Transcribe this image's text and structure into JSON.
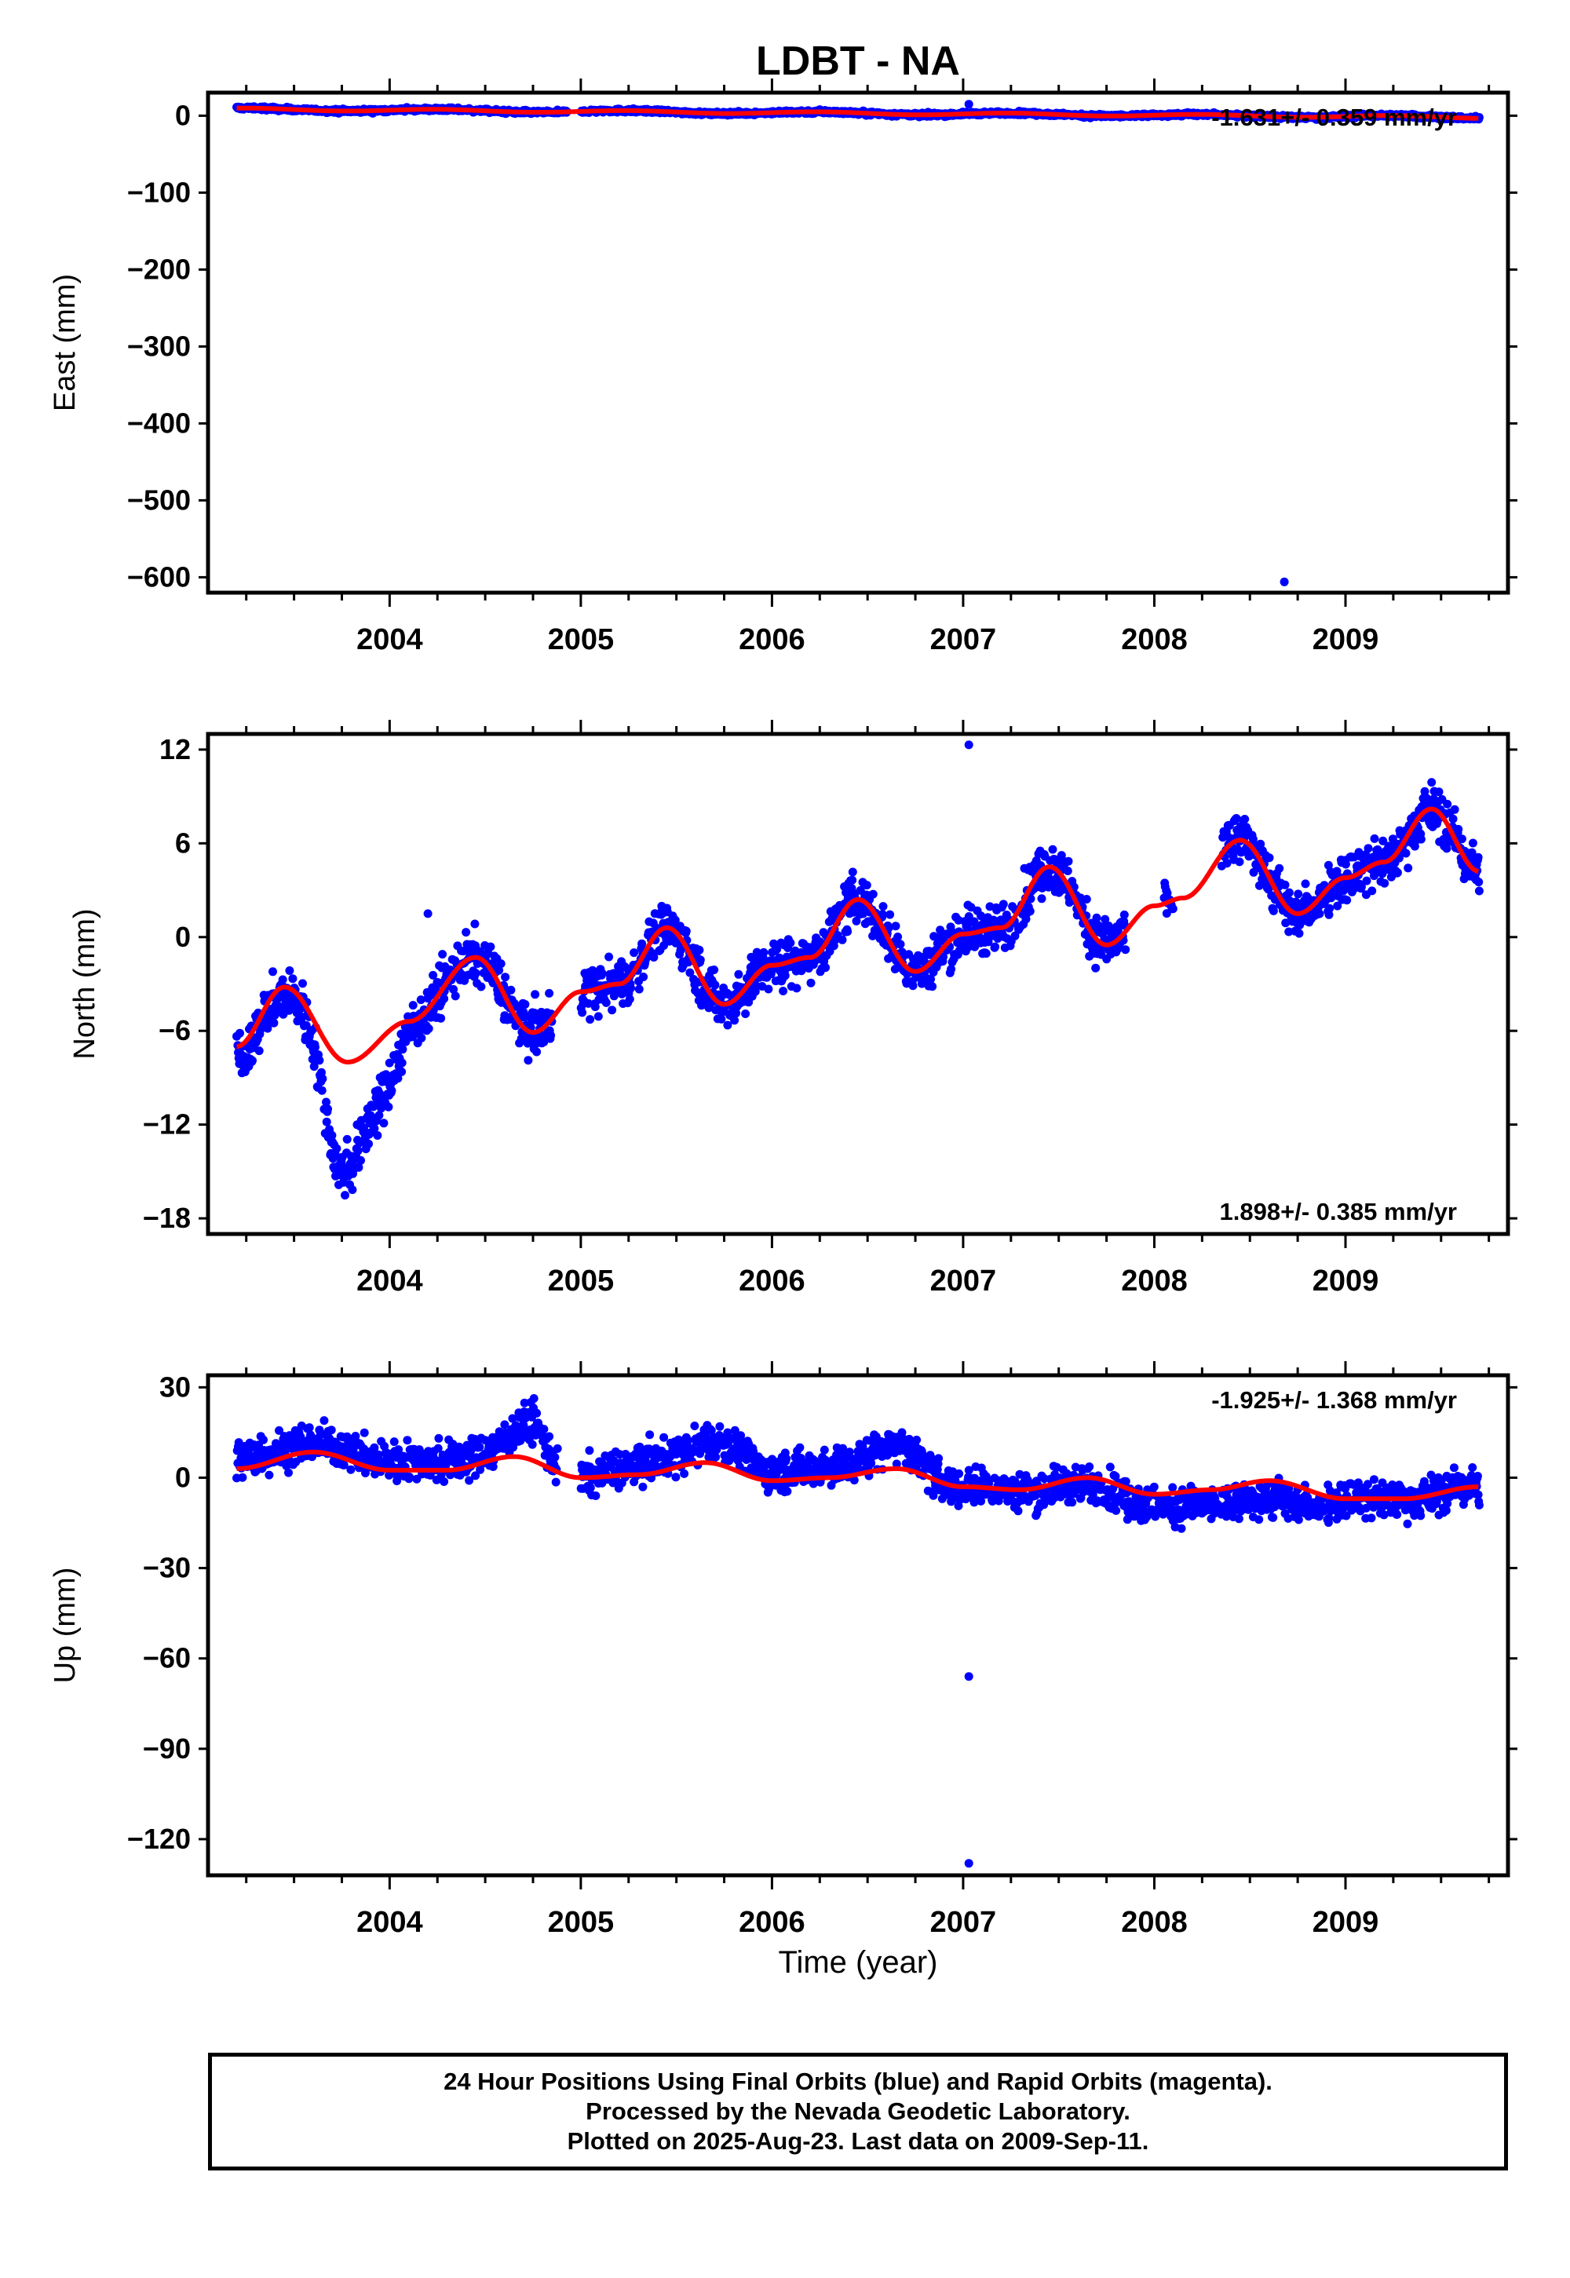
{
  "figure_title": "LDBT - NA",
  "x_axis_title": "Time (year)",
  "footer": {
    "line1": "24 Hour Positions Using Final Orbits (blue) and Rapid Orbits (magenta).",
    "line2": "Processed by the Nevada Geodetic Laboratory.",
    "line3": "Plotted on 2025-Aug-23. Last data on 2009-Sep-11."
  },
  "colors": {
    "data_points": "#0000ff",
    "model_fit": "#ff0000",
    "axes": "#000000"
  },
  "chart_data": [
    {
      "type": "scatter",
      "panel": "east",
      "ylabel": "East (mm)",
      "xlim": [
        2003.05,
        2009.85
      ],
      "ylim": [
        -620,
        30
      ],
      "x_ticks": [
        2004,
        2005,
        2006,
        2007,
        2008,
        2009
      ],
      "y_ticks": [
        0,
        -100,
        -200,
        -300,
        -400,
        -500,
        -600
      ],
      "velocity_annotation": "-1.631+/- 0.359 mm/yr",
      "annotation_position": "top-right",
      "data_span": [
        2003.2,
        2009.7
      ],
      "seasonal": {
        "base": 8.5,
        "rate": -1.631,
        "amp": 1.5,
        "noise": 2.0
      },
      "outliers": [
        [
          2007.03,
          15
        ],
        [
          2008.68,
          -606
        ]
      ],
      "gaps": [
        [
          2004.93,
          2005.0
        ]
      ],
      "series": [
        {
          "name": "Final Orbits",
          "color": "#0000ff"
        },
        {
          "name": "Model",
          "color": "#ff0000"
        }
      ]
    },
    {
      "type": "scatter",
      "panel": "north",
      "ylabel": "North (mm)",
      "xlim": [
        2003.05,
        2009.85
      ],
      "ylim": [
        -19,
        13
      ],
      "x_ticks": [
        2004,
        2005,
        2006,
        2007,
        2008,
        2009
      ],
      "y_ticks": [
        12,
        6,
        0,
        -6,
        -12,
        -18
      ],
      "velocity_annotation": "1.898+/- 0.385 mm/yr",
      "annotation_position": "bottom-right",
      "data_span": [
        2003.2,
        2009.7
      ],
      "model_knots": [
        [
          2003.2,
          -7
        ],
        [
          2003.45,
          -3.2
        ],
        [
          2003.78,
          -8
        ],
        [
          2004.1,
          -5.4
        ],
        [
          2004.45,
          -1.3
        ],
        [
          2004.75,
          -6.1
        ],
        [
          2005.0,
          -3.5
        ],
        [
          2005.2,
          -3.0
        ],
        [
          2005.45,
          0.6
        ],
        [
          2005.75,
          -4.3
        ],
        [
          2006.0,
          -1.8
        ],
        [
          2006.2,
          -1.3
        ],
        [
          2006.45,
          2.4
        ],
        [
          2006.75,
          -2.2
        ],
        [
          2007.0,
          0.2
        ],
        [
          2007.2,
          0.6
        ],
        [
          2007.45,
          4.5
        ],
        [
          2007.75,
          -0.5
        ],
        [
          2008.0,
          2.0
        ],
        [
          2008.15,
          2.5
        ],
        [
          2008.45,
          6.2
        ],
        [
          2008.75,
          1.5
        ],
        [
          2009.0,
          3.8
        ],
        [
          2009.2,
          4.8
        ],
        [
          2009.45,
          8.2
        ],
        [
          2009.7,
          4.2
        ]
      ],
      "data_anomaly": [
        [
          2003.55,
          -0.5
        ],
        [
          2003.75,
          -7.0
        ],
        [
          2003.95,
          -4.0
        ],
        [
          2004.15,
          0
        ]
      ],
      "noise": 1.4,
      "outliers": [
        [
          2007.03,
          12.3
        ],
        [
          2004.2,
          1.5
        ]
      ],
      "gaps": [
        [
          2004.85,
          2005.0
        ],
        [
          2007.85,
          2008.05
        ],
        [
          2008.1,
          2008.35
        ]
      ],
      "series": [
        {
          "name": "Final Orbits",
          "color": "#0000ff"
        },
        {
          "name": "Model",
          "color": "#ff0000"
        }
      ]
    },
    {
      "type": "scatter",
      "panel": "up",
      "ylabel": "Up (mm)",
      "xlim": [
        2003.05,
        2009.85
      ],
      "ylim": [
        -132,
        34
      ],
      "x_ticks": [
        2004,
        2005,
        2006,
        2007,
        2008,
        2009
      ],
      "y_ticks": [
        30,
        0,
        -30,
        -60,
        -90,
        -120
      ],
      "velocity_annotation": "-1.925+/- 1.368 mm/yr",
      "annotation_position": "top-right",
      "data_span": [
        2003.2,
        2009.7
      ],
      "model_knots": [
        [
          2003.2,
          3
        ],
        [
          2003.6,
          8.5
        ],
        [
          2004.0,
          2.5
        ],
        [
          2004.3,
          2.5
        ],
        [
          2004.65,
          7
        ],
        [
          2005.0,
          0
        ],
        [
          2005.3,
          1
        ],
        [
          2005.65,
          5
        ],
        [
          2006.0,
          -1
        ],
        [
          2006.3,
          0
        ],
        [
          2006.65,
          3
        ],
        [
          2007.0,
          -3
        ],
        [
          2007.3,
          -4
        ],
        [
          2007.65,
          0
        ],
        [
          2008.0,
          -5.5
        ],
        [
          2008.3,
          -4
        ],
        [
          2008.6,
          -1
        ],
        [
          2009.0,
          -7
        ],
        [
          2009.3,
          -7
        ],
        [
          2009.7,
          -3
        ]
      ],
      "data_anomaly": [
        [
          2004.5,
          3
        ],
        [
          2004.75,
          12
        ],
        [
          2004.9,
          0
        ],
        [
          2005.5,
          4
        ],
        [
          2005.75,
          8
        ],
        [
          2006.0,
          3
        ],
        [
          2006.4,
          4
        ],
        [
          2006.65,
          8
        ],
        [
          2006.9,
          0
        ],
        [
          2008.75,
          -6
        ],
        [
          2009.0,
          0
        ]
      ],
      "noise": 5.5,
      "outliers": [
        [
          2007.03,
          -66
        ],
        [
          2007.03,
          -128
        ]
      ],
      "gaps": [
        [
          2004.88,
          2005.0
        ]
      ],
      "series": [
        {
          "name": "Final Orbits",
          "color": "#0000ff"
        },
        {
          "name": "Model",
          "color": "#ff0000"
        }
      ]
    }
  ]
}
